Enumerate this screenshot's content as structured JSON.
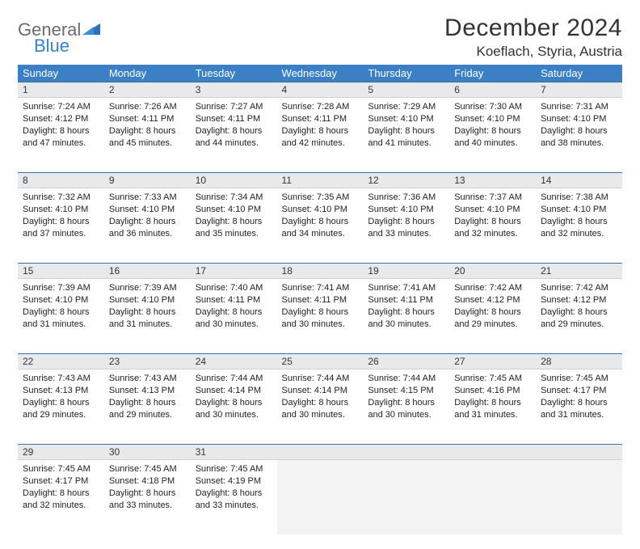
{
  "logo": {
    "word1": "General",
    "word2": "Blue"
  },
  "title": "December 2024",
  "location": "Koeflach, Styria, Austria",
  "colors": {
    "header_bg": "#3b7fc4",
    "header_text": "#ffffff",
    "daynum_bg": "#e8e9ea",
    "rule": "#3b6fa8",
    "body_text": "#222222",
    "logo_gray": "#6b6b6b",
    "logo_blue": "#3b7fc4"
  },
  "weekdays": [
    "Sunday",
    "Monday",
    "Tuesday",
    "Wednesday",
    "Thursday",
    "Friday",
    "Saturday"
  ],
  "weeks": [
    [
      {
        "n": "1",
        "sr": "Sunrise: 7:24 AM",
        "ss": "Sunset: 4:12 PM",
        "d1": "Daylight: 8 hours",
        "d2": "and 47 minutes."
      },
      {
        "n": "2",
        "sr": "Sunrise: 7:26 AM",
        "ss": "Sunset: 4:11 PM",
        "d1": "Daylight: 8 hours",
        "d2": "and 45 minutes."
      },
      {
        "n": "3",
        "sr": "Sunrise: 7:27 AM",
        "ss": "Sunset: 4:11 PM",
        "d1": "Daylight: 8 hours",
        "d2": "and 44 minutes."
      },
      {
        "n": "4",
        "sr": "Sunrise: 7:28 AM",
        "ss": "Sunset: 4:11 PM",
        "d1": "Daylight: 8 hours",
        "d2": "and 42 minutes."
      },
      {
        "n": "5",
        "sr": "Sunrise: 7:29 AM",
        "ss": "Sunset: 4:10 PM",
        "d1": "Daylight: 8 hours",
        "d2": "and 41 minutes."
      },
      {
        "n": "6",
        "sr": "Sunrise: 7:30 AM",
        "ss": "Sunset: 4:10 PM",
        "d1": "Daylight: 8 hours",
        "d2": "and 40 minutes."
      },
      {
        "n": "7",
        "sr": "Sunrise: 7:31 AM",
        "ss": "Sunset: 4:10 PM",
        "d1": "Daylight: 8 hours",
        "d2": "and 38 minutes."
      }
    ],
    [
      {
        "n": "8",
        "sr": "Sunrise: 7:32 AM",
        "ss": "Sunset: 4:10 PM",
        "d1": "Daylight: 8 hours",
        "d2": "and 37 minutes."
      },
      {
        "n": "9",
        "sr": "Sunrise: 7:33 AM",
        "ss": "Sunset: 4:10 PM",
        "d1": "Daylight: 8 hours",
        "d2": "and 36 minutes."
      },
      {
        "n": "10",
        "sr": "Sunrise: 7:34 AM",
        "ss": "Sunset: 4:10 PM",
        "d1": "Daylight: 8 hours",
        "d2": "and 35 minutes."
      },
      {
        "n": "11",
        "sr": "Sunrise: 7:35 AM",
        "ss": "Sunset: 4:10 PM",
        "d1": "Daylight: 8 hours",
        "d2": "and 34 minutes."
      },
      {
        "n": "12",
        "sr": "Sunrise: 7:36 AM",
        "ss": "Sunset: 4:10 PM",
        "d1": "Daylight: 8 hours",
        "d2": "and 33 minutes."
      },
      {
        "n": "13",
        "sr": "Sunrise: 7:37 AM",
        "ss": "Sunset: 4:10 PM",
        "d1": "Daylight: 8 hours",
        "d2": "and 32 minutes."
      },
      {
        "n": "14",
        "sr": "Sunrise: 7:38 AM",
        "ss": "Sunset: 4:10 PM",
        "d1": "Daylight: 8 hours",
        "d2": "and 32 minutes."
      }
    ],
    [
      {
        "n": "15",
        "sr": "Sunrise: 7:39 AM",
        "ss": "Sunset: 4:10 PM",
        "d1": "Daylight: 8 hours",
        "d2": "and 31 minutes."
      },
      {
        "n": "16",
        "sr": "Sunrise: 7:39 AM",
        "ss": "Sunset: 4:10 PM",
        "d1": "Daylight: 8 hours",
        "d2": "and 31 minutes."
      },
      {
        "n": "17",
        "sr": "Sunrise: 7:40 AM",
        "ss": "Sunset: 4:11 PM",
        "d1": "Daylight: 8 hours",
        "d2": "and 30 minutes."
      },
      {
        "n": "18",
        "sr": "Sunrise: 7:41 AM",
        "ss": "Sunset: 4:11 PM",
        "d1": "Daylight: 8 hours",
        "d2": "and 30 minutes."
      },
      {
        "n": "19",
        "sr": "Sunrise: 7:41 AM",
        "ss": "Sunset: 4:11 PM",
        "d1": "Daylight: 8 hours",
        "d2": "and 30 minutes."
      },
      {
        "n": "20",
        "sr": "Sunrise: 7:42 AM",
        "ss": "Sunset: 4:12 PM",
        "d1": "Daylight: 8 hours",
        "d2": "and 29 minutes."
      },
      {
        "n": "21",
        "sr": "Sunrise: 7:42 AM",
        "ss": "Sunset: 4:12 PM",
        "d1": "Daylight: 8 hours",
        "d2": "and 29 minutes."
      }
    ],
    [
      {
        "n": "22",
        "sr": "Sunrise: 7:43 AM",
        "ss": "Sunset: 4:13 PM",
        "d1": "Daylight: 8 hours",
        "d2": "and 29 minutes."
      },
      {
        "n": "23",
        "sr": "Sunrise: 7:43 AM",
        "ss": "Sunset: 4:13 PM",
        "d1": "Daylight: 8 hours",
        "d2": "and 29 minutes."
      },
      {
        "n": "24",
        "sr": "Sunrise: 7:44 AM",
        "ss": "Sunset: 4:14 PM",
        "d1": "Daylight: 8 hours",
        "d2": "and 30 minutes."
      },
      {
        "n": "25",
        "sr": "Sunrise: 7:44 AM",
        "ss": "Sunset: 4:14 PM",
        "d1": "Daylight: 8 hours",
        "d2": "and 30 minutes."
      },
      {
        "n": "26",
        "sr": "Sunrise: 7:44 AM",
        "ss": "Sunset: 4:15 PM",
        "d1": "Daylight: 8 hours",
        "d2": "and 30 minutes."
      },
      {
        "n": "27",
        "sr": "Sunrise: 7:45 AM",
        "ss": "Sunset: 4:16 PM",
        "d1": "Daylight: 8 hours",
        "d2": "and 31 minutes."
      },
      {
        "n": "28",
        "sr": "Sunrise: 7:45 AM",
        "ss": "Sunset: 4:17 PM",
        "d1": "Daylight: 8 hours",
        "d2": "and 31 minutes."
      }
    ],
    [
      {
        "n": "29",
        "sr": "Sunrise: 7:45 AM",
        "ss": "Sunset: 4:17 PM",
        "d1": "Daylight: 8 hours",
        "d2": "and 32 minutes."
      },
      {
        "n": "30",
        "sr": "Sunrise: 7:45 AM",
        "ss": "Sunset: 4:18 PM",
        "d1": "Daylight: 8 hours",
        "d2": "and 33 minutes."
      },
      {
        "n": "31",
        "sr": "Sunrise: 7:45 AM",
        "ss": "Sunset: 4:19 PM",
        "d1": "Daylight: 8 hours",
        "d2": "and 33 minutes."
      },
      null,
      null,
      null,
      null
    ]
  ]
}
